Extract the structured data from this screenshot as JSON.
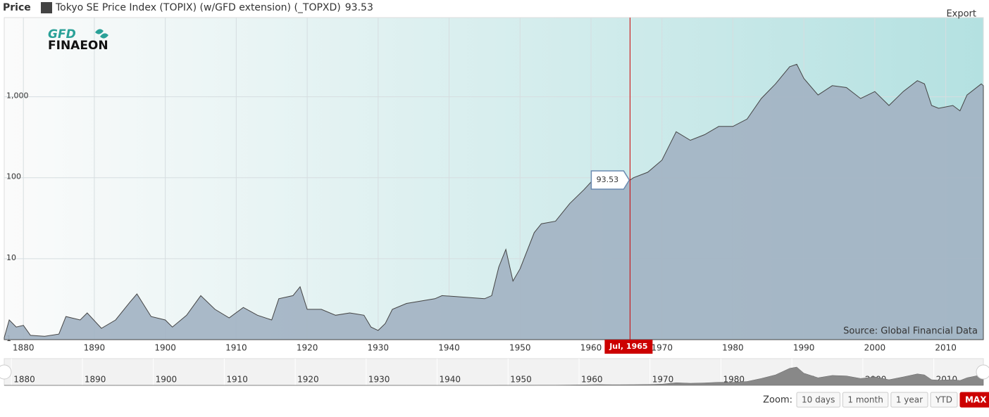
{
  "header": {
    "label": "Price"
  },
  "logo": {
    "top": "GFD",
    "bottom": "FINAEON"
  },
  "export": "Export",
  "zoom": {
    "label": "Zoom:",
    "buttons": [
      "10 days",
      "1 month",
      "1 year",
      "YTD",
      "MAX"
    ],
    "active": 4
  },
  "chart_data": {
    "type": "area",
    "y_log": true,
    "grid": true,
    "source": "Source: Global Financial Data",
    "xlim": [
      1877.3,
      2015.3
    ],
    "xticks": [
      1880,
      1890,
      1900,
      1910,
      1920,
      1930,
      1940,
      1950,
      1960,
      1970,
      1980,
      1990,
      2000,
      2010
    ],
    "ylim": [
      1,
      9500
    ],
    "yticks": [
      1,
      10,
      100,
      {
        "value": 1000,
        "label": "1,000"
      }
    ],
    "crosshair": {
      "x": 1965.5,
      "x_label": "Jul, 1965",
      "value": 93.53
    },
    "x": [
      1877.3,
      1878,
      1879,
      1880,
      1881,
      1883,
      1885,
      1886,
      1888,
      1889,
      1891,
      1893,
      1895,
      1896,
      1898,
      1900,
      1901,
      1903,
      1905,
      1907,
      1909,
      1911,
      1913,
      1915,
      1916,
      1918,
      1919,
      1920,
      1922,
      1924,
      1926,
      1928,
      1929,
      1930,
      1931,
      1932,
      1934,
      1936,
      1938,
      1939,
      1941,
      1943,
      1945,
      1946,
      1947,
      1948,
      1949,
      1950,
      1952,
      1953,
      1955,
      1957,
      1959,
      1961,
      1962,
      1963,
      1964,
      1965.5,
      1966,
      1968,
      1970,
      1972,
      1974,
      1976,
      1978,
      1980,
      1982,
      1984,
      1986,
      1988,
      1989,
      1990,
      1992,
      1994,
      1996,
      1998,
      2000,
      2002,
      2004,
      2006,
      2007,
      2008,
      2009,
      2011,
      2012,
      2013,
      2015,
      2015.3
    ],
    "series": [
      {
        "name": "Tokyo SE Price Index (TOPIX) (w/GFD extension) (_TOPXD)",
        "color": "#444444",
        "values": [
          1.06,
          1.75,
          1.43,
          1.5,
          1.13,
          1.1,
          1.17,
          1.93,
          1.75,
          2.14,
          1.38,
          1.75,
          2.9,
          3.67,
          1.93,
          1.75,
          1.43,
          2.0,
          3.5,
          2.37,
          1.86,
          2.5,
          2.0,
          1.75,
          3.2,
          3.5,
          4.5,
          2.37,
          2.37,
          2.0,
          2.14,
          2.0,
          1.43,
          1.3,
          1.58,
          2.37,
          2.8,
          3.0,
          3.2,
          3.5,
          3.4,
          3.3,
          3.2,
          3.5,
          7.9,
          13,
          5.3,
          7.5,
          21,
          27,
          29,
          48,
          71,
          110,
          94,
          90,
          84,
          93.53,
          100,
          117,
          165,
          370,
          290,
          340,
          430,
          430,
          530,
          950,
          1440,
          2350,
          2520,
          1680,
          1050,
          1370,
          1300,
          950,
          1160,
          780,
          1160,
          1580,
          1440,
          780,
          720,
          780,
          670,
          1050,
          1440,
          1370
        ]
      }
    ]
  }
}
